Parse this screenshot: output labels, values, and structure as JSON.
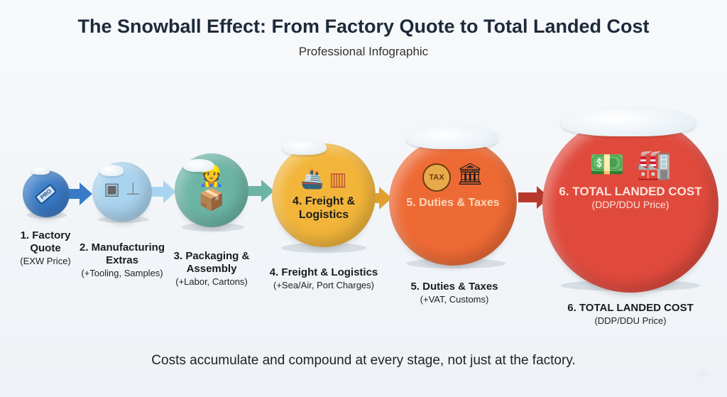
{
  "header": {
    "title": "The Snowball Effect: From Factory Quote to Total Landed Cost",
    "subtitle": "Professional Infographic"
  },
  "stages": [
    {
      "inner_title": "",
      "inner_sub": "",
      "icons": [
        "price-tag-icon"
      ],
      "label_title": "1. Factory Quote",
      "label_sub": "(EXW Price)",
      "color": "#3a7bc8",
      "tag_text": "PRO"
    },
    {
      "inner_title": "",
      "inner_sub": "",
      "icons": [
        "mold-icon",
        "tooling-icon"
      ],
      "label_title": "2. Manufacturing Extras",
      "label_sub": "(+Tooling, Samples)",
      "color": "#a9d4ef"
    },
    {
      "inner_title": "",
      "inner_sub": "",
      "icons": [
        "worker-icon",
        "box-icon"
      ],
      "label_title": "3. Packaging & Assembly",
      "label_sub": "(+Labor, Cartons)",
      "color": "#6cb5a5"
    },
    {
      "inner_title": "4. Freight & Logistics",
      "inner_sub": "",
      "icons": [
        "cargo-ship-icon",
        "container-icon"
      ],
      "label_title": "4. Freight & Logistics",
      "label_sub": "(+Sea/Air, Port Charges)",
      "color": "#f2b53a"
    },
    {
      "inner_title": "5. Duties & Taxes",
      "inner_sub": "",
      "icons": [
        "tax-seal-icon",
        "government-building-icon"
      ],
      "label_title": "5. Duties & Taxes",
      "label_sub": "(+VAT, Customs)",
      "color": "#ee6a35",
      "tax_text": "TAX"
    },
    {
      "inner_title": "6. TOTAL LANDED COST",
      "inner_sub": "(DDP/DDU Price)",
      "icons": [
        "cash-stack-icon",
        "warehouse-icon"
      ],
      "label_title": "6. TOTAL LANDED COST",
      "label_sub": "(DDP/DDU Price)",
      "color": "#e04a3d"
    }
  ],
  "arrow_colors": [
    "#3a7bc8",
    "#a9d4ef",
    "#6cb5a5",
    "#e0a030",
    "#b8392c"
  ],
  "footer": {
    "text": "Costs accumulate and compound at every stage, not just at the factory."
  }
}
